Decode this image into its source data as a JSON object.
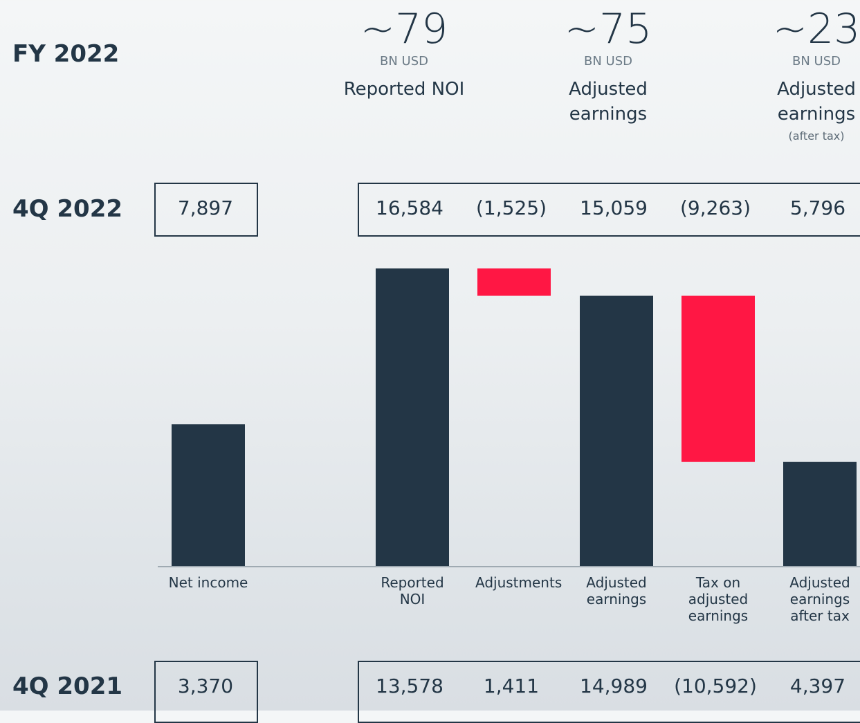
{
  "chart_data": {
    "type": "waterfall",
    "categories": [
      "Net income",
      "Reported NOI",
      "Adjustments",
      "Adjusted earnings",
      "Tax on adjusted earnings",
      "Adjusted earnings after tax"
    ],
    "measure": [
      "absolute",
      "absolute",
      "relative",
      "absolute",
      "relative",
      "absolute"
    ],
    "period": "4Q 2022",
    "values": [
      7897,
      16584,
      -1525,
      15059,
      -9263,
      5796
    ],
    "value_labels": [
      "7,897",
      "16,584",
      "(1,525)",
      "15,059",
      "(9,263)",
      "5,796"
    ],
    "color": "#233646",
    "negative_color": "#ff1744",
    "ylim": [
      0,
      16584
    ],
    "comparison": {
      "period": "4Q 2021",
      "labels": [
        "3,370",
        "13,578",
        "1,411",
        "14,989",
        "(10,592)",
        "4,397"
      ]
    }
  },
  "fy_summary": {
    "title": "FY 2022",
    "items": [
      {
        "amount": "~79",
        "unit": "BN USD",
        "name": "Reported NOI"
      },
      {
        "amount": "~75",
        "unit": "BN USD",
        "name": "Adjusted earnings"
      },
      {
        "amount": "~23",
        "unit": "BN USD",
        "name": "Adjusted earnings",
        "note": "(after tax)"
      }
    ]
  }
}
